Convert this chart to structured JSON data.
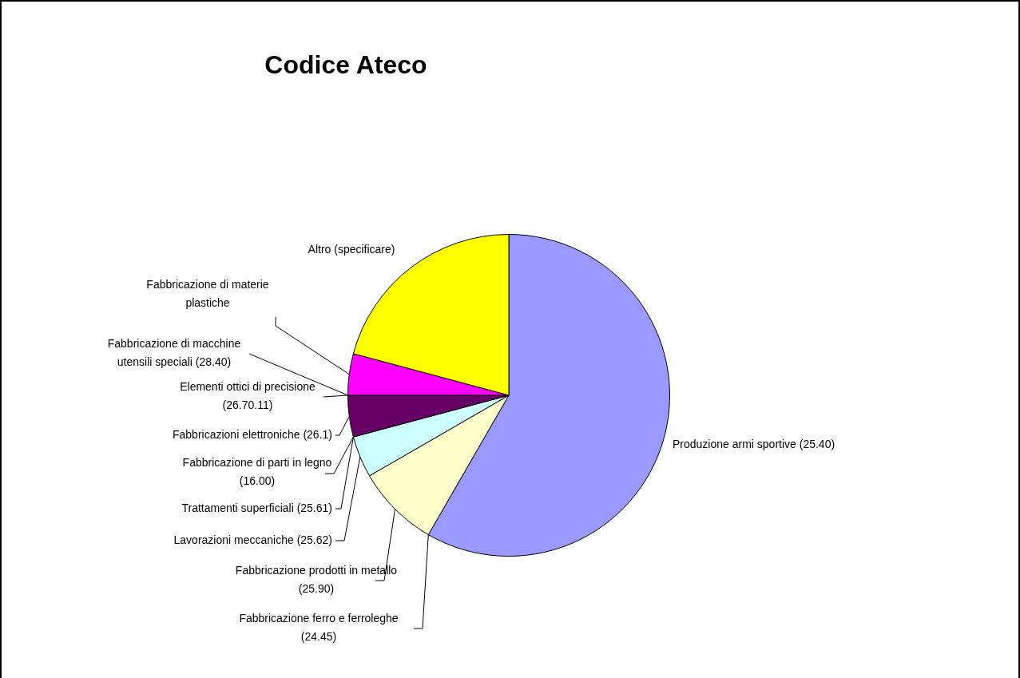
{
  "chart_data": {
    "type": "pie",
    "title": "Codice Ateco",
    "categories": [
      "Produzione armi sportive (25.40)",
      "Fabbricazione ferro e ferroleghe (24.45)",
      "Fabbricazione prodotti in metallo (25.90)",
      "Lavorazioni meccaniche (25.62)",
      "Trattamenti superficiali (25.61)",
      "Fabbricazione di parti in legno (16.00)",
      "Fabbricazioni elettroniche (26.1)",
      "Elementi ottici di precisione (26.70.11)",
      "Fabbricazione di macchine utensili speciali (28.40)",
      "Fabbricazione di materie plastiche",
      "Altro (specificare)"
    ],
    "values": [
      58.33,
      0,
      8.33,
      4.17,
      0,
      0,
      4.17,
      0,
      0,
      4.17,
      20.83
    ],
    "colors": [
      "#9999ff",
      "#993366",
      "#ffffcc",
      "#ccffff",
      "#ff8080",
      "#0066cc",
      "#660066",
      "#cccfff",
      "#000080",
      "#ff00ff",
      "#ffff00"
    ]
  }
}
